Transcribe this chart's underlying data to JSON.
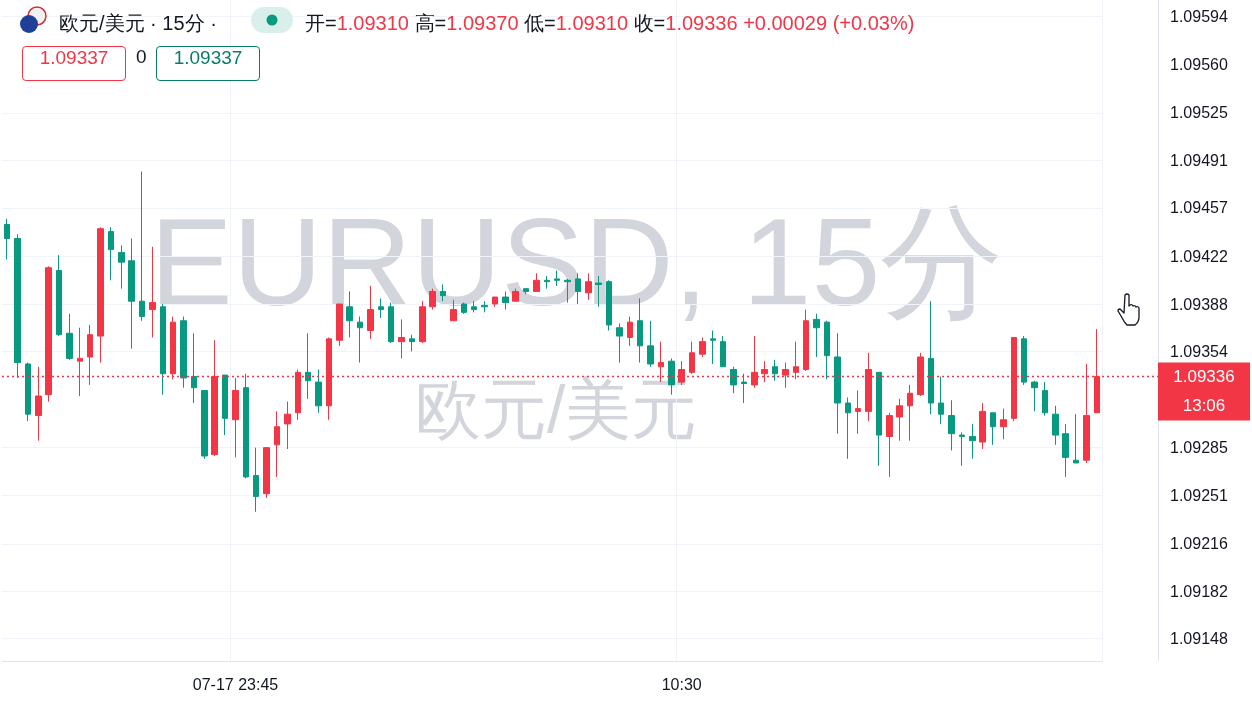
{
  "chart_data": {
    "type": "candlestick",
    "title": "欧元/美元 · 15分 ·",
    "subtitle": "开=1.09310 高=1.09370 低=1.09310 收=1.09336 +0.00029 (+0.03%)",
    "annotations": [
      "1.09337",
      "0",
      "1.09337",
      "EURUSD, 15分",
      "欧元/美元",
      "13:06"
    ],
    "categories": [
      null,
      null,
      null,
      null,
      null,
      null,
      null,
      null,
      null,
      null,
      null,
      null,
      null,
      null,
      null,
      null,
      null,
      null,
      null,
      null,
      null,
      null,
      "07-17 23:45",
      null,
      null,
      null,
      null,
      null,
      null,
      null,
      null,
      null,
      null,
      null,
      null,
      null,
      null,
      null,
      null,
      null,
      null,
      null,
      null,
      null,
      null,
      null,
      null,
      null,
      null,
      null,
      null,
      null,
      null,
      null,
      null,
      null,
      null,
      null,
      null,
      null,
      null,
      null,
      null,
      null,
      null,
      "10:30",
      null,
      null,
      null,
      null,
      null,
      null,
      null,
      null,
      null,
      null,
      null,
      null,
      null,
      null,
      null,
      null,
      null,
      null,
      null,
      null,
      null,
      null,
      null,
      null,
      null,
      null,
      null,
      null,
      null,
      null,
      null,
      null,
      null,
      null,
      null,
      null,
      null,
      null,
      null,
      null
    ],
    "ohlc": [
      [
        1.09445,
        1.09449,
        1.0942,
        1.09435
      ],
      [
        1.09435,
        1.09438,
        1.09335,
        1.09346
      ],
      [
        1.09345,
        1.09346,
        1.09304,
        1.09309
      ],
      [
        1.09308,
        1.09343,
        1.0929,
        1.09322
      ],
      [
        1.09323,
        1.09415,
        1.09318,
        1.09414
      ],
      [
        1.09412,
        1.09423,
        1.09365,
        1.09366
      ],
      [
        1.09367,
        1.09381,
        1.09348,
        1.09349
      ],
      [
        1.09347,
        1.09371,
        1.09322,
        1.09349
      ],
      [
        1.0935,
        1.09373,
        1.0933,
        1.09366
      ],
      [
        1.09365,
        1.09443,
        1.09346,
        1.09442
      ],
      [
        1.0944,
        1.09443,
        1.09405,
        1.09427
      ],
      [
        1.09425,
        1.0943,
        1.09399,
        1.09418
      ],
      [
        1.09419,
        1.09435,
        1.09356,
        1.0939
      ],
      [
        1.0939,
        1.09483,
        1.09376,
        1.09379
      ],
      [
        1.09384,
        1.09429,
        1.09364,
        1.09389
      ],
      [
        1.09386,
        1.09388,
        1.09323,
        1.09338
      ],
      [
        1.09338,
        1.09379,
        1.09334,
        1.09375
      ],
      [
        1.09376,
        1.09379,
        1.09328,
        1.09335
      ],
      [
        1.09336,
        1.09367,
        1.09317,
        1.09328
      ],
      [
        1.09326,
        1.09326,
        1.09277,
        1.09279
      ],
      [
        1.0928,
        1.09362,
        1.09279,
        1.09336
      ],
      [
        1.09337,
        1.09337,
        1.09294,
        1.09306
      ],
      [
        1.09305,
        1.09335,
        1.09278,
        1.09326
      ],
      [
        1.09328,
        1.09338,
        1.09263,
        1.09264
      ],
      [
        1.09265,
        1.09285,
        1.09239,
        1.0925
      ],
      [
        1.09252,
        1.09285,
        1.09249,
        1.09285
      ],
      [
        1.09287,
        1.09311,
        1.09264,
        1.093
      ],
      [
        1.09302,
        1.09318,
        1.09284,
        1.09309
      ],
      [
        1.0931,
        1.09341,
        1.09305,
        1.09339
      ],
      [
        1.09339,
        1.09367,
        1.0932,
        1.09333
      ],
      [
        1.09332,
        1.09341,
        1.0931,
        1.09315
      ],
      [
        1.09315,
        1.09364,
        1.09305,
        1.09363
      ],
      [
        1.09362,
        1.09388,
        1.09358,
        1.09388
      ],
      [
        1.09386,
        1.09397,
        1.09364,
        1.09376
      ],
      [
        1.09375,
        1.09379,
        1.09346,
        1.09371
      ],
      [
        1.09369,
        1.09401,
        1.09363,
        1.09384
      ],
      [
        1.09386,
        1.09392,
        1.09378,
        1.09384
      ],
      [
        1.09386,
        1.09389,
        1.0936,
        1.09361
      ],
      [
        1.09361,
        1.09377,
        1.09349,
        1.09364
      ],
      [
        1.09363,
        1.09366,
        1.09354,
        1.09361
      ],
      [
        1.09361,
        1.0939,
        1.0936,
        1.09386
      ],
      [
        1.09386,
        1.09399,
        1.09384,
        1.09397
      ],
      [
        1.09397,
        1.09402,
        1.0939,
        1.09394
      ],
      [
        1.09376,
        1.09391,
        1.09376,
        1.09384
      ],
      [
        1.09388,
        1.09389,
        1.09381,
        1.09382
      ],
      [
        1.09386,
        1.0939,
        1.09382,
        1.09384
      ],
      [
        1.09387,
        1.0939,
        1.09382,
        1.09386
      ],
      [
        1.09388,
        1.09393,
        1.09386,
        1.09393
      ],
      [
        1.09393,
        1.09397,
        1.09384,
        1.09389
      ],
      [
        1.0939,
        1.09399,
        1.0939,
        1.09397
      ],
      [
        1.09399,
        1.09399,
        1.09395,
        1.09397
      ],
      [
        1.09397,
        1.0941,
        1.09397,
        1.09405
      ],
      [
        1.09405,
        1.09408,
        1.09399,
        1.09404
      ],
      [
        1.09406,
        1.09412,
        1.09401,
        1.09405
      ],
      [
        1.09405,
        1.09406,
        1.09389,
        1.09404
      ],
      [
        1.09406,
        1.0941,
        1.09388,
        1.09397
      ],
      [
        1.09396,
        1.0941,
        1.09391,
        1.09404
      ],
      [
        1.09403,
        1.09408,
        1.09386,
        1.09402
      ],
      [
        1.09404,
        1.09405,
        1.09369,
        1.09373
      ],
      [
        1.09371,
        1.09374,
        1.09346,
        1.09365
      ],
      [
        1.09364,
        1.09379,
        1.09358,
        1.09375
      ],
      [
        1.09376,
        1.09392,
        1.09346,
        1.09358
      ],
      [
        1.09358,
        1.09376,
        1.09343,
        1.09345
      ],
      [
        1.09343,
        1.09361,
        1.09332,
        1.09346
      ],
      [
        1.09347,
        1.09349,
        1.09323,
        1.0933
      ],
      [
        1.09332,
        1.09347,
        1.0933,
        1.09341
      ],
      [
        1.09339,
        1.09361,
        1.09338,
        1.09353
      ],
      [
        1.09352,
        1.09364,
        1.0935,
        1.09361
      ],
      [
        1.09363,
        1.09369,
        1.09345,
        1.09362
      ],
      [
        1.09361,
        1.09365,
        1.09343,
        1.09343
      ],
      [
        1.09341,
        1.09343,
        1.09324,
        1.0933
      ],
      [
        1.09332,
        1.09338,
        1.09317,
        1.09331
      ],
      [
        1.0933,
        1.09365,
        1.09328,
        1.09339
      ],
      [
        1.09338,
        1.09347,
        1.09332,
        1.09341
      ],
      [
        1.09343,
        1.09348,
        1.09333,
        1.09338
      ],
      [
        1.09337,
        1.09346,
        1.09328,
        1.09341
      ],
      [
        1.09339,
        1.09361,
        1.09334,
        1.09343
      ],
      [
        1.09341,
        1.09384,
        1.0934,
        1.09376
      ],
      [
        1.09377,
        1.09381,
        1.0935,
        1.09371
      ],
      [
        1.09375,
        1.09376,
        1.09334,
        1.09351
      ],
      [
        1.0935,
        1.09367,
        1.09295,
        1.09317
      ],
      [
        1.09317,
        1.09321,
        1.09277,
        1.0931
      ],
      [
        1.09311,
        1.09326,
        1.09295,
        1.09313
      ],
      [
        1.09311,
        1.09353,
        1.09304,
        1.09341
      ],
      [
        1.09339,
        1.09339,
        1.09272,
        1.09294
      ],
      [
        1.09293,
        1.0931,
        1.09264,
        1.09308
      ],
      [
        1.09307,
        1.0932,
        1.0929,
        1.09315
      ],
      [
        1.09315,
        1.0933,
        1.0929,
        1.09324
      ],
      [
        1.09323,
        1.09353,
        1.09322,
        1.0935
      ],
      [
        1.09349,
        1.0939,
        1.09309,
        1.09317
      ],
      [
        1.09317,
        1.09336,
        1.09302,
        1.09309
      ],
      [
        1.09308,
        1.09319,
        1.09283,
        1.09295
      ],
      [
        1.09294,
        1.09296,
        1.09272,
        1.09293
      ],
      [
        1.09293,
        1.09302,
        1.09277,
        1.0929
      ],
      [
        1.09289,
        1.09317,
        1.09284,
        1.09311
      ],
      [
        1.0931,
        1.0931,
        1.09287,
        1.093
      ],
      [
        1.093,
        1.09313,
        1.09291,
        1.09305
      ],
      [
        1.09306,
        1.09364,
        1.09304,
        1.09364
      ],
      [
        1.09363,
        1.09365,
        1.0933,
        1.09332
      ],
      [
        1.09332,
        1.09333,
        1.09311,
        1.09328
      ],
      [
        1.09326,
        1.09332,
        1.09308,
        1.0931
      ],
      [
        1.09309,
        1.09315,
        1.09287,
        1.09294
      ],
      [
        1.09295,
        1.09302,
        1.09264,
        1.09278
      ],
      [
        1.09276,
        1.09309,
        1.09274,
        1.09274
      ],
      [
        1.09276,
        1.09345,
        1.09274,
        1.09308
      ],
      [
        1.0931,
        1.0937,
        1.0931,
        1.09336
      ]
    ],
    "colors": [
      "#089981",
      "#089981",
      "#089981",
      "#f23645",
      "#f23645",
      "#089981",
      "#089981",
      "#f23645",
      "#f23645",
      "#f23645",
      "#089981",
      "#089981",
      "#089981",
      "#089981",
      "#f23645",
      "#089981",
      "#f23645",
      "#089981",
      "#089981",
      "#089981",
      "#f23645",
      "#089981",
      "#f23645",
      "#089981",
      "#089981",
      "#f23645",
      "#f23645",
      "#f23645",
      "#f23645",
      "#089981",
      "#089981",
      "#f23645",
      "#f23645",
      "#089981",
      "#089981",
      "#f23645",
      "#089981",
      "#089981",
      "#f23645",
      "#089981",
      "#f23645",
      "#f23645",
      "#089981",
      "#f23645",
      "#089981",
      "#089981",
      "#089981",
      "#f23645",
      "#089981",
      "#f23645",
      "#089981",
      "#f23645",
      "#089981",
      "#089981",
      "#089981",
      "#089981",
      "#f23645",
      "#089981",
      "#089981",
      "#089981",
      "#f23645",
      "#089981",
      "#089981",
      "#f23645",
      "#089981",
      "#f23645",
      "#f23645",
      "#f23645",
      "#089981",
      "#089981",
      "#089981",
      "#089981",
      "#f23645",
      "#f23645",
      "#089981",
      "#f23645",
      "#f23645",
      "#f23645",
      "#089981",
      "#089981",
      "#089981",
      "#089981",
      "#f23645",
      "#f23645",
      "#089981",
      "#f23645",
      "#f23645",
      "#f23645",
      "#f23645",
      "#089981",
      "#089981",
      "#089981",
      "#089981",
      "#089981",
      "#f23645",
      "#089981",
      "#f23645",
      "#f23645",
      "#089981",
      "#089981",
      "#089981",
      "#089981",
      "#089981",
      "#089981",
      "#f23645",
      "#f23645"
    ],
    "ylim": [
      1.09132,
      1.09606
    ],
    "yticks": [
      1.09148,
      1.09182,
      1.09216,
      1.09251,
      1.09285,
      1.09354,
      1.09388,
      1.09422,
      1.09457,
      1.09491,
      1.09525,
      {
        "value": 1.0956,
        "label": "1.09560"
      },
      1.09594
    ],
    "grid": true,
    "ref_lines": [
      {
        "axis": "y",
        "value": 1.09336,
        "label": "1.09336",
        "color": "#f23645",
        "line_style": "dotted"
      }
    ]
  }
}
